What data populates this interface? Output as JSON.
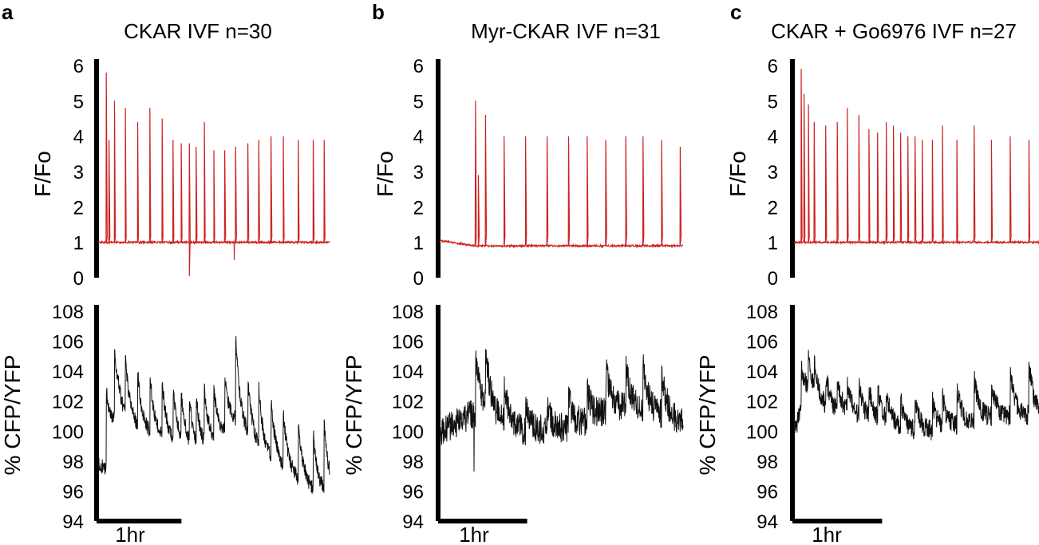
{
  "chart_data": [
    {
      "panel_label": "a",
      "title": "CKAR IVF n=30",
      "scale_bar_label": "1hr",
      "top": {
        "type": "line",
        "ylabel": "F/Fo",
        "yticks": [
          "0",
          "1",
          "2",
          "3",
          "4",
          "5",
          "6"
        ],
        "ylim": [
          0,
          6
        ],
        "color": "#cc2222",
        "series": [
          {
            "baseline": 1.0,
            "duration_min": 170,
            "spikes": [
              [
                6,
                5.8
              ],
              [
                8,
                3.9
              ],
              [
                12,
                5.0
              ],
              [
                20,
                4.8
              ],
              [
                29,
                4.4
              ],
              [
                38,
                4.8
              ],
              [
                47,
                4.5
              ],
              [
                55,
                3.9
              ],
              [
                61,
                3.8
              ],
              [
                67,
                3.8
              ],
              [
                72,
                3.7
              ],
              [
                78,
                4.4
              ],
              [
                85,
                3.6
              ],
              [
                93,
                3.6
              ],
              [
                101,
                3.7
              ],
              [
                110,
                3.8
              ],
              [
                118,
                3.9
              ],
              [
                127,
                4.0
              ],
              [
                136,
                4.0
              ],
              [
                147,
                3.9
              ],
              [
                158,
                3.9
              ],
              [
                166,
                3.9
              ]
            ],
            "dips": [
              [
                67,
                0.05
              ],
              [
                100,
                0.5
              ]
            ]
          }
        ]
      },
      "bottom": {
        "type": "line",
        "ylabel": "% CFP/YFP",
        "yticks": [
          "94",
          "96",
          "98",
          "100",
          "102",
          "104",
          "106",
          "108"
        ],
        "ylim": [
          94,
          108
        ],
        "color": "#111111",
        "series": [
          {
            "duration_min": 170,
            "noise": 0.5,
            "trend": [
              [
                0,
                97.8
              ],
              [
                5,
                97.5
              ],
              [
                15,
                101.0
              ],
              [
                30,
                100.0
              ],
              [
                45,
                99.5
              ],
              [
                60,
                99.0
              ],
              [
                75,
                98.5
              ],
              [
                90,
                99.5
              ],
              [
                100,
                100.5
              ],
              [
                110,
                99.5
              ],
              [
                120,
                98.5
              ],
              [
                135,
                97.5
              ],
              [
                150,
                96.5
              ],
              [
                160,
                95.8
              ],
              [
                168,
                95.8
              ]
            ],
            "spikes": [
              [
                6,
                5.0
              ],
              [
                12,
                4.5
              ],
              [
                20,
                3.8
              ],
              [
                29,
                3.6
              ],
              [
                38,
                3.8
              ],
              [
                47,
                3.5
              ],
              [
                55,
                3.2
              ],
              [
                61,
                3.0
              ],
              [
                67,
                2.8
              ],
              [
                72,
                3.0
              ],
              [
                78,
                3.5
              ],
              [
                85,
                3.2
              ],
              [
                93,
                3.5
              ],
              [
                101,
                5.5
              ],
              [
                110,
                3.5
              ],
              [
                118,
                3.8
              ],
              [
                127,
                3.8
              ],
              [
                136,
                3.5
              ],
              [
                147,
                3.8
              ],
              [
                158,
                3.8
              ],
              [
                166,
                4.5
              ]
            ]
          }
        ]
      }
    },
    {
      "panel_label": "b",
      "title": "Myr-CKAR IVF n=31",
      "scale_bar_label": "1hr",
      "top": {
        "type": "line",
        "ylabel": "F/Fo",
        "yticks": [
          "0",
          "1",
          "2",
          "3",
          "4",
          "5",
          "6"
        ],
        "ylim": [
          0,
          6
        ],
        "color": "#cc2222",
        "series": [
          {
            "baseline": 1.05,
            "duration_min": 170,
            "spikes": [
              [
                25,
                5.0
              ],
              [
                27,
                2.9
              ],
              [
                32,
                4.6
              ],
              [
                45,
                4.0
              ],
              [
                60,
                4.0
              ],
              [
                75,
                4.0
              ],
              [
                90,
                4.0
              ],
              [
                103,
                4.0
              ],
              [
                116,
                3.9
              ],
              [
                130,
                4.0
              ],
              [
                142,
                4.0
              ],
              [
                155,
                3.9
              ],
              [
                168,
                3.7
              ]
            ],
            "dips": []
          }
        ]
      },
      "bottom": {
        "type": "line",
        "ylabel": "% CFP/YFP",
        "yticks": [
          "94",
          "96",
          "98",
          "100",
          "102",
          "104",
          "106",
          "108"
        ],
        "ylim": [
          94,
          108
        ],
        "color": "#111111",
        "series": [
          {
            "duration_min": 170,
            "noise": 1.0,
            "trend": [
              [
                0,
                100.0
              ],
              [
                20,
                101.0
              ],
              [
                30,
                101.5
              ],
              [
                45,
                100.5
              ],
              [
                60,
                100.0
              ],
              [
                80,
                100.0
              ],
              [
                100,
                100.5
              ],
              [
                120,
                101.5
              ],
              [
                140,
                101.5
              ],
              [
                160,
                101.0
              ],
              [
                168,
                100.5
              ]
            ],
            "spikes": [
              [
                25,
                3.5
              ],
              [
                32,
                4.0
              ],
              [
                45,
                2.5
              ],
              [
                60,
                2.0
              ],
              [
                75,
                2.0
              ],
              [
                90,
                2.0
              ],
              [
                103,
                2.0
              ],
              [
                116,
                3.0
              ],
              [
                130,
                2.8
              ],
              [
                142,
                3.0
              ],
              [
                155,
                2.8
              ]
            ],
            "downspikes": [
              [
                24,
                4.5
              ]
            ]
          }
        ]
      }
    },
    {
      "panel_label": "c",
      "title": "CKAR + Go6976 IVF n=27",
      "scale_bar_label": "1hr",
      "top": {
        "type": "line",
        "ylabel": "F/Fo",
        "yticks": [
          "0",
          "1",
          "2",
          "3",
          "4",
          "5",
          "6"
        ],
        "ylim": [
          0,
          6
        ],
        "color": "#cc2222",
        "series": [
          {
            "baseline": 1.0,
            "duration_min": 170,
            "spikes": [
              [
                5,
                5.9
              ],
              [
                7,
                5.2
              ],
              [
                10,
                4.9
              ],
              [
                14,
                4.4
              ],
              [
                22,
                4.3
              ],
              [
                30,
                4.4
              ],
              [
                37,
                4.8
              ],
              [
                45,
                4.6
              ],
              [
                52,
                4.2
              ],
              [
                58,
                4.1
              ],
              [
                64,
                4.4
              ],
              [
                69,
                4.3
              ],
              [
                74,
                4.1
              ],
              [
                79,
                4.0
              ],
              [
                84,
                4.0
              ],
              [
                89,
                3.9
              ],
              [
                96,
                3.9
              ],
              [
                103,
                4.3
              ],
              [
                113,
                3.9
              ],
              [
                125,
                4.3
              ],
              [
                137,
                3.9
              ],
              [
                150,
                4.0
              ],
              [
                163,
                3.9
              ]
            ],
            "dips": []
          }
        ]
      },
      "bottom": {
        "type": "line",
        "ylabel": "% CFP/YFP",
        "yticks": [
          "94",
          "96",
          "98",
          "100",
          "102",
          "104",
          "106",
          "108"
        ],
        "ylim": [
          94,
          108
        ],
        "color": "#111111",
        "series": [
          {
            "duration_min": 170,
            "noise": 0.7,
            "trend": [
              [
                0,
                100.0
              ],
              [
                8,
                102.0
              ],
              [
                20,
                101.5
              ],
              [
                40,
                101.0
              ],
              [
                60,
                100.5
              ],
              [
                80,
                100.0
              ],
              [
                100,
                100.0
              ],
              [
                120,
                100.5
              ],
              [
                140,
                101.0
              ],
              [
                160,
                101.0
              ],
              [
                168,
                101.0
              ]
            ],
            "spikes": [
              [
                5,
                3.0
              ],
              [
                10,
                2.5
              ],
              [
                14,
                2.0
              ],
              [
                22,
                2.0
              ],
              [
                30,
                2.0
              ],
              [
                37,
                2.0
              ],
              [
                45,
                2.0
              ],
              [
                52,
                2.0
              ],
              [
                58,
                1.8
              ],
              [
                64,
                2.0
              ],
              [
                74,
                1.8
              ],
              [
                84,
                1.8
              ],
              [
                96,
                2.0
              ],
              [
                103,
                2.0
              ],
              [
                113,
                2.5
              ],
              [
                125,
                2.8
              ],
              [
                137,
                2.0
              ],
              [
                150,
                3.0
              ],
              [
                163,
                3.5
              ]
            ]
          }
        ]
      }
    }
  ]
}
